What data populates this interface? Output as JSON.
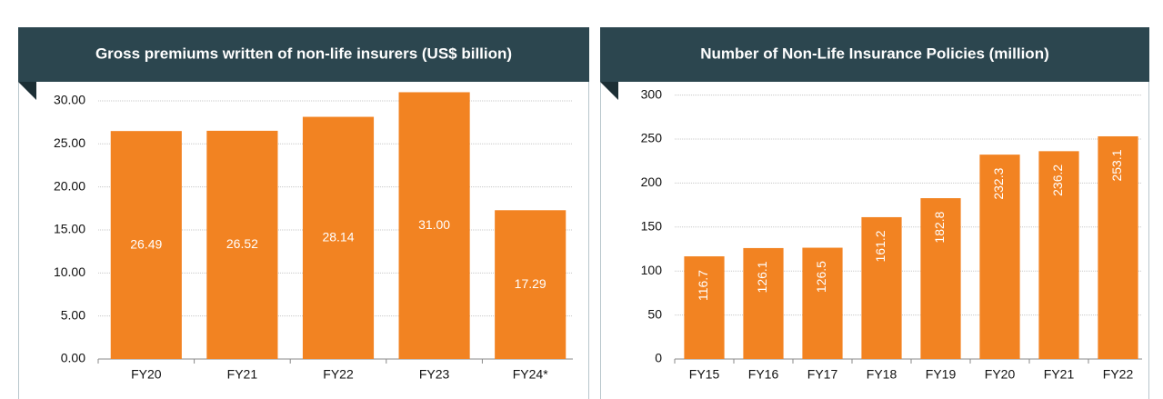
{
  "charts": [
    {
      "type": "bar",
      "title": "Gross premiums written of non-life insurers (US$ billion)",
      "categories": [
        "FY20",
        "FY21",
        "FY22",
        "FY23",
        "FY24*"
      ],
      "values": [
        26.49,
        26.52,
        28.14,
        31,
        17.29
      ],
      "value_labels": [
        "26.49",
        "26.52",
        "28.14",
        "31.00",
        "17.29"
      ],
      "color": "#f28322",
      "label_rotation": 0,
      "ylim": [
        0,
        32
      ],
      "yticks": [
        {
          "value": 0,
          "label": "0.00"
        },
        {
          "value": 5,
          "label": "5.00"
        },
        {
          "value": 10,
          "label": "10.00"
        },
        {
          "value": 15,
          "label": "15.00"
        },
        {
          "value": 20,
          "label": "20.00"
        },
        {
          "value": 25,
          "label": "25.00"
        },
        {
          "value": 30,
          "label": "30.00"
        }
      ],
      "grid": true
    },
    {
      "type": "bar",
      "title": "Number of Non-Life Insurance Policies (million)",
      "categories": [
        "FY15",
        "FY16",
        "FY17",
        "FY18",
        "FY19",
        "FY20",
        "FY21",
        "FY22"
      ],
      "values": [
        116.7,
        126.1,
        126.5,
        161.2,
        182.8,
        232.3,
        236.2,
        253.1
      ],
      "color": "#f28322",
      "label_rotation": -90,
      "ylim": [
        0,
        313
      ],
      "yticks": [
        0,
        50,
        100,
        150,
        200,
        250,
        300
      ],
      "grid": true
    }
  ]
}
